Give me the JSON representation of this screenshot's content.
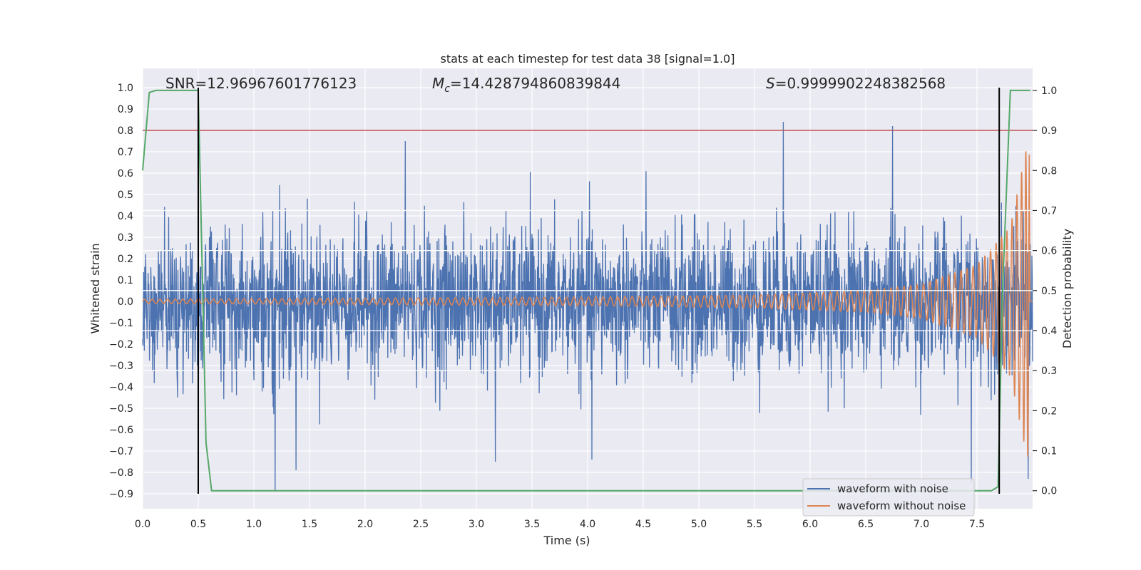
{
  "chart_data": {
    "type": "line",
    "title": "stats at each timestep for test data 38 [signal=1.0]",
    "xlabel": "Time (s)",
    "ylabel": "Whitened strain",
    "ylabel_right": "Detection probability",
    "xlim": [
      0.0,
      8.0
    ],
    "ylim": [
      -0.97,
      1.09
    ],
    "ylim_right": [
      -0.045,
      1.055
    ],
    "x_ticks": [
      "0.0",
      "0.5",
      "1.0",
      "1.5",
      "2.0",
      "2.5",
      "3.0",
      "3.5",
      "4.0",
      "4.5",
      "5.0",
      "5.5",
      "6.0",
      "6.5",
      "7.0",
      "7.5"
    ],
    "x_tick_values": [
      0.0,
      0.5,
      1.0,
      1.5,
      2.0,
      2.5,
      3.0,
      3.5,
      4.0,
      4.5,
      5.0,
      5.5,
      6.0,
      6.5,
      7.0,
      7.5
    ],
    "y_ticks": [
      "1.0",
      "0.9",
      "0.8",
      "0.7",
      "0.6",
      "0.5",
      "0.4",
      "0.3",
      "0.2",
      "0.1",
      "0.0",
      "−0.1",
      "−0.2",
      "−0.3",
      "−0.4",
      "−0.5",
      "−0.6",
      "−0.7",
      "−0.8",
      "−0.9"
    ],
    "y_tick_values": [
      1.0,
      0.9,
      0.8,
      0.7,
      0.6,
      0.5,
      0.4,
      0.3,
      0.2,
      0.1,
      0.0,
      -0.1,
      -0.2,
      -0.3,
      -0.4,
      -0.5,
      -0.6,
      -0.7,
      -0.8,
      -0.9
    ],
    "y_right_ticks": [
      "1.0",
      "0.9",
      "0.8",
      "0.7",
      "0.6",
      "0.5",
      "0.4",
      "0.3",
      "0.2",
      "0.1",
      "0.0"
    ],
    "y_right_tick_values": [
      1.0,
      0.9,
      0.8,
      0.7,
      0.6,
      0.5,
      0.4,
      0.3,
      0.2,
      0.1,
      0.0
    ],
    "annotations": {
      "snr": "SNR=12.96967601776123",
      "mc_symbol": "M",
      "mc_subscript": "c",
      "mc_value": "=14.428794860839844",
      "s_symbol": "S",
      "s_value": "=0.9999902248382568"
    },
    "threshold_line": {
      "value": 0.8,
      "color": "#c44e52"
    },
    "vertical_lines": [
      {
        "x": 0.5,
        "y_from": -0.9,
        "y_to": 1.0,
        "color": "#000000"
      },
      {
        "x": 7.7,
        "y_from": -0.9,
        "y_to": 1.0,
        "color": "#000000"
      }
    ],
    "series": [
      {
        "name": "waveform with noise",
        "color": "#4c72b0",
        "description": "noisy whitened strain, typical band about -0.45 to 0.45",
        "peaks": [
          {
            "x": 5.76,
            "y": 0.84
          },
          {
            "x": 6.74,
            "y": 0.82
          },
          {
            "x": 2.36,
            "y": 0.75
          },
          {
            "x": 1.19,
            "y": -0.89
          },
          {
            "x": 7.45,
            "y": -0.85
          },
          {
            "x": 1.38,
            "y": -0.79
          },
          {
            "x": 7.96,
            "y": -0.83
          },
          {
            "x": 3.17,
            "y": -0.75
          },
          {
            "x": 4.04,
            "y": -0.74
          }
        ]
      },
      {
        "name": "waveform without noise",
        "color": "#dd8452",
        "description": "chirp signal growing in amplitude and frequency until merger near 7.97 s",
        "envelope_points": [
          {
            "x": 0.0,
            "y": 0.01
          },
          {
            "x": 2.0,
            "y": 0.015
          },
          {
            "x": 4.0,
            "y": 0.02
          },
          {
            "x": 5.5,
            "y": 0.03
          },
          {
            "x": 6.5,
            "y": 0.05
          },
          {
            "x": 7.0,
            "y": 0.08
          },
          {
            "x": 7.5,
            "y": 0.17
          },
          {
            "x": 7.8,
            "y": 0.35
          },
          {
            "x": 7.95,
            "y": 0.73
          }
        ],
        "end_x": 7.97
      },
      {
        "name": "detection probability",
        "color": "#55a868",
        "axis": "right",
        "x": [
          0.0,
          0.06,
          0.12,
          0.3,
          0.45,
          0.5,
          0.57,
          0.62,
          0.75,
          5.0,
          7.63,
          7.69,
          7.73,
          7.8,
          7.98
        ],
        "values": [
          0.8,
          0.995,
          1.0,
          1.0,
          1.0,
          1.0,
          0.12,
          0.0,
          0.0,
          0.0,
          0.0,
          0.01,
          0.5,
          1.0,
          1.0
        ]
      }
    ],
    "legend": {
      "position": "lower-right",
      "entries": [
        "waveform with noise",
        "waveform without noise"
      ]
    }
  }
}
